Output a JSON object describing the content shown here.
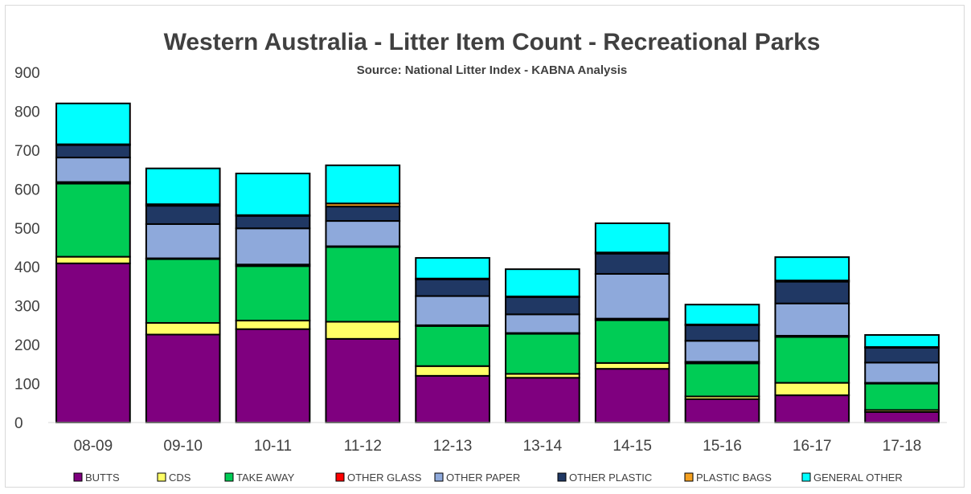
{
  "chart_data": {
    "type": "bar",
    "stacked": true,
    "title": "Western Australia - Litter Item Count - Recreational Parks",
    "subtitle": "Source: National Litter Index - KABNA Analysis",
    "categories": [
      "08-09",
      "09-10",
      "10-11",
      "11-12",
      "12-13",
      "13-14",
      "14-15",
      "15-16",
      "16-17",
      "17-18"
    ],
    "ylim": [
      0,
      900
    ],
    "yticks": [
      0,
      100,
      200,
      300,
      400,
      500,
      600,
      700,
      800,
      900
    ],
    "grid": false,
    "legend_position": "bottom",
    "series": [
      {
        "name": "BUTTS",
        "color": "#7f007f",
        "values": [
          409,
          226,
          240,
          215,
          120,
          115,
          138,
          60,
          70,
          27
        ]
      },
      {
        "name": "CDS",
        "color": "#ffff66",
        "values": [
          17,
          30,
          22,
          44,
          25,
          10,
          15,
          7,
          32,
          5
        ]
      },
      {
        "name": "TAKE AWAY",
        "color": "#00cc55",
        "values": [
          188,
          164,
          140,
          192,
          103,
          103,
          110,
          85,
          118,
          68
        ]
      },
      {
        "name": "OTHER GLASS",
        "color": "#ff0000",
        "values": [
          4,
          2,
          4,
          2,
          2,
          2,
          4,
          4,
          3,
          2
        ]
      },
      {
        "name": "OTHER PAPER",
        "color": "#8ea9db",
        "values": [
          63,
          88,
          93,
          65,
          75,
          48,
          115,
          54,
          83,
          52
        ]
      },
      {
        "name": "OTHER PLASTIC",
        "color": "#203864",
        "values": [
          32,
          47,
          32,
          37,
          43,
          44,
          52,
          40,
          56,
          38
        ]
      },
      {
        "name": "PLASTIC BAGS",
        "color": "#f4a020",
        "values": [
          2,
          4,
          2,
          8,
          2,
          2,
          3,
          2,
          3,
          2
        ]
      },
      {
        "name": "GENERAL OTHER",
        "color": "#00ffff",
        "values": [
          105,
          92,
          107,
          98,
          53,
          70,
          75,
          51,
          60,
          31
        ]
      }
    ]
  }
}
